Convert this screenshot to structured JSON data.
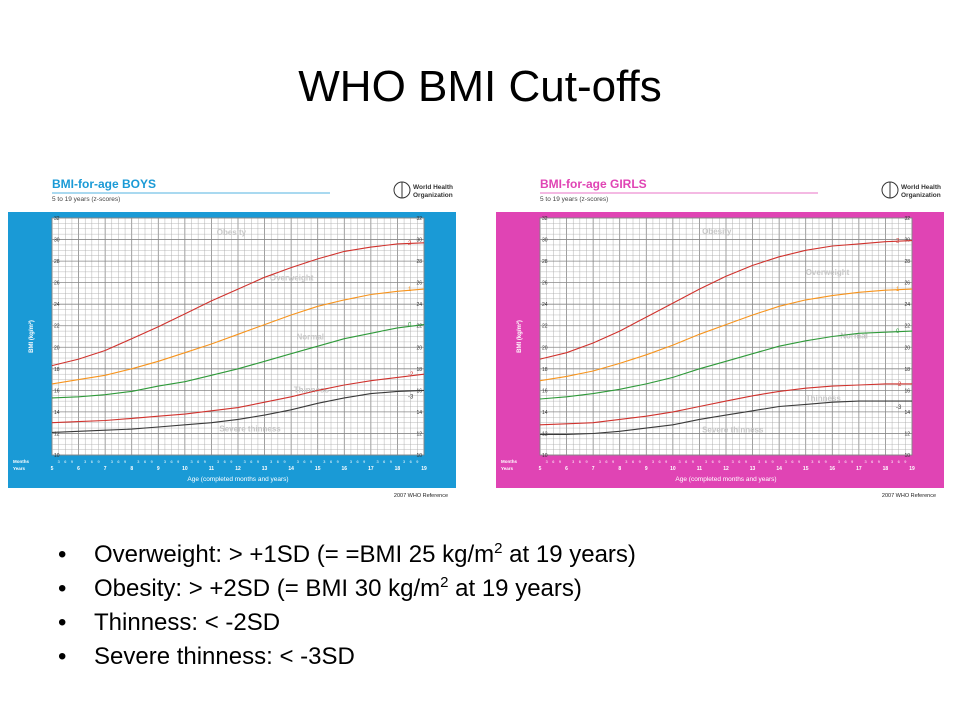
{
  "slide": {
    "title": "WHO BMI Cut-offs"
  },
  "bullets": [
    {
      "before": "Overweight: > +1SD (= =BMI 25 kg/m",
      "sup": "2",
      "after": " at 19 years)"
    },
    {
      "before": "Obesity: > +2SD (= BMI 30 kg/m",
      "sup": "2",
      "after": " at 19 years)"
    },
    {
      "before": "Thinness: < -2SD",
      "sup": "",
      "after": ""
    },
    {
      "before": "Severe thinness: < -3SD",
      "sup": "",
      "after": ""
    }
  ],
  "chart_data": [
    {
      "type": "line",
      "title": "BMI-for-age  BOYS",
      "subtitle": "5 to 19 years (z-scores)",
      "logo_text": [
        "World Health",
        "Organization"
      ],
      "reference": "2007 WHO Reference",
      "xlabel": "Age (completed months and years)",
      "ylabel": "BMI (kg/m²)",
      "row_labels": [
        "Months",
        "Years"
      ],
      "month_ticks": [
        "3",
        "6",
        "9"
      ],
      "xlim": [
        5,
        19
      ],
      "ylim": [
        10,
        32
      ],
      "x_ticks": [
        5,
        6,
        7,
        8,
        9,
        10,
        11,
        12,
        13,
        14,
        15,
        16,
        17,
        18,
        19
      ],
      "y_ticks": [
        10,
        12,
        14,
        16,
        18,
        20,
        22,
        24,
        26,
        28,
        30,
        32
      ],
      "grid": true,
      "colors": {
        "frame": "#1a9ad6",
        "title": "#1a9ad6",
        "grid": "#a9a9a9",
        "sd2": "#d0322d",
        "sd1": "#f7941d",
        "sd0": "#2f9a3a",
        "sdm2": "#d0322d",
        "sdm3": "#3a3a3a"
      },
      "x": [
        5,
        6,
        7,
        8,
        9,
        10,
        11,
        12,
        13,
        14,
        15,
        16,
        17,
        18,
        19
      ],
      "series": [
        {
          "name": "2",
          "key": "sd2",
          "values": [
            18.3,
            18.9,
            19.7,
            20.8,
            21.9,
            23.1,
            24.3,
            25.4,
            26.5,
            27.4,
            28.2,
            28.9,
            29.3,
            29.6,
            29.7
          ]
        },
        {
          "name": "1",
          "key": "sd1",
          "values": [
            16.6,
            17.0,
            17.4,
            18.0,
            18.7,
            19.5,
            20.3,
            21.2,
            22.1,
            23.0,
            23.8,
            24.4,
            24.9,
            25.2,
            25.4
          ]
        },
        {
          "name": "0",
          "key": "sd0",
          "values": [
            15.3,
            15.4,
            15.6,
            15.9,
            16.4,
            16.8,
            17.4,
            18.0,
            18.7,
            19.4,
            20.1,
            20.8,
            21.3,
            21.8,
            22.1
          ]
        },
        {
          "name": "-2",
          "key": "sdm2",
          "values": [
            13.0,
            13.1,
            13.2,
            13.4,
            13.6,
            13.8,
            14.1,
            14.4,
            14.9,
            15.4,
            16.0,
            16.5,
            16.9,
            17.2,
            17.5
          ]
        },
        {
          "name": "-3",
          "key": "sdm3",
          "values": [
            12.1,
            12.2,
            12.3,
            12.4,
            12.6,
            12.8,
            13.0,
            13.3,
            13.7,
            14.2,
            14.8,
            15.3,
            15.7,
            15.9,
            16.0
          ]
        }
      ],
      "zone_labels": [
        {
          "text": "Obesity",
          "x": 11.2,
          "y": 30.4
        },
        {
          "text": "Overweight",
          "x": 13.2,
          "y": 26.2
        },
        {
          "text": "Normal",
          "x": 14.2,
          "y": 20.7
        },
        {
          "text": "Thinness",
          "x": 14.1,
          "y": 15.8
        },
        {
          "text": "Severe thinness",
          "x": 11.3,
          "y": 12.2
        }
      ]
    },
    {
      "type": "line",
      "title": "BMI-for-age  GIRLS",
      "subtitle": "5 to 19 years (z-scores)",
      "logo_text": [
        "World Health",
        "Organization"
      ],
      "reference": "2007 WHO Reference",
      "xlabel": "Age (completed months and years)",
      "ylabel": "BMI (kg/m²)",
      "row_labels": [
        "Months",
        "Years"
      ],
      "month_ticks": [
        "3",
        "6",
        "9"
      ],
      "xlim": [
        5,
        19
      ],
      "ylim": [
        10,
        32
      ],
      "x_ticks": [
        5,
        6,
        7,
        8,
        9,
        10,
        11,
        12,
        13,
        14,
        15,
        16,
        17,
        18,
        19
      ],
      "y_ticks": [
        10,
        12,
        14,
        16,
        18,
        20,
        22,
        24,
        26,
        28,
        30,
        32
      ],
      "grid": true,
      "colors": {
        "frame": "#e044b4",
        "title": "#e044b4",
        "grid": "#a9a9a9",
        "sd2": "#d0322d",
        "sd1": "#f7941d",
        "sd0": "#2f9a3a",
        "sdm2": "#d0322d",
        "sdm3": "#3a3a3a"
      },
      "x": [
        5,
        6,
        7,
        8,
        9,
        10,
        11,
        12,
        13,
        14,
        15,
        16,
        17,
        18,
        19
      ],
      "series": [
        {
          "name": "2",
          "key": "sd2",
          "values": [
            18.9,
            19.5,
            20.4,
            21.5,
            22.8,
            24.1,
            25.4,
            26.6,
            27.6,
            28.4,
            29.0,
            29.4,
            29.6,
            29.8,
            29.9
          ]
        },
        {
          "name": "1",
          "key": "sd1",
          "values": [
            16.9,
            17.3,
            17.8,
            18.5,
            19.3,
            20.2,
            21.2,
            22.1,
            23.0,
            23.8,
            24.4,
            24.8,
            25.1,
            25.3,
            25.4
          ]
        },
        {
          "name": "0",
          "key": "sd0",
          "values": [
            15.2,
            15.4,
            15.7,
            16.1,
            16.6,
            17.2,
            18.0,
            18.7,
            19.4,
            20.1,
            20.6,
            21.0,
            21.3,
            21.4,
            21.5
          ]
        },
        {
          "name": "-2",
          "key": "sdm2",
          "values": [
            12.8,
            12.9,
            13.0,
            13.3,
            13.6,
            14.0,
            14.5,
            15.0,
            15.5,
            15.9,
            16.2,
            16.4,
            16.5,
            16.6,
            16.6
          ]
        },
        {
          "name": "-3",
          "key": "sdm3",
          "values": [
            11.9,
            11.9,
            12.0,
            12.2,
            12.5,
            12.8,
            13.3,
            13.7,
            14.1,
            14.5,
            14.7,
            14.9,
            15.0,
            15.0,
            15.0
          ]
        }
      ],
      "zone_labels": [
        {
          "text": "Obesity",
          "x": 11.1,
          "y": 30.5
        },
        {
          "text": "Overweight",
          "x": 15.0,
          "y": 26.7
        },
        {
          "text": "Normal",
          "x": 16.3,
          "y": 20.8
        },
        {
          "text": "Thinness",
          "x": 15.0,
          "y": 15.0
        },
        {
          "text": "Severe thinness",
          "x": 11.1,
          "y": 12.1
        }
      ]
    }
  ]
}
